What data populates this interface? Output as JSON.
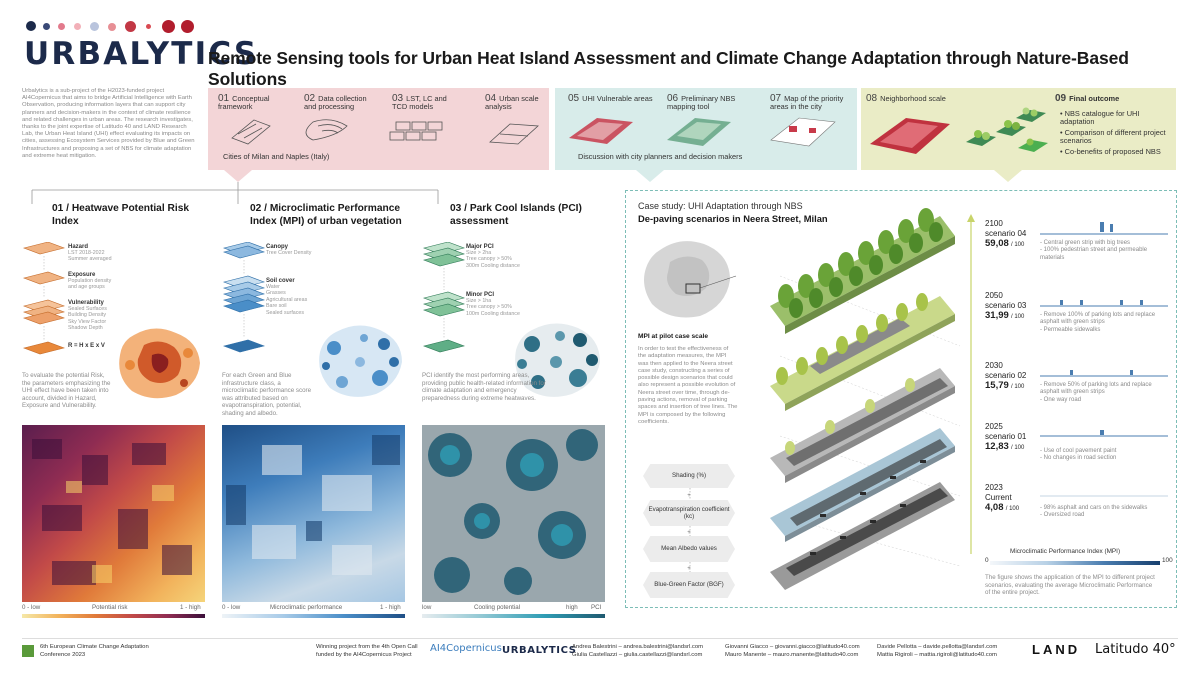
{
  "brand": {
    "logo_text": "URBALYTICS",
    "dot_colors": [
      "#1c2a4a",
      "#3a4a77",
      "#e27a8c",
      "#f2b0b8",
      "#b9c4dd",
      "#e78f95",
      "#c23845",
      "#d94a52",
      "#b11d2d"
    ]
  },
  "header": {
    "title": "Remote Sensing tools for Urban Heat Island Assessment and Climate Change Adaptation through Nature-Based Solutions"
  },
  "intro": {
    "text": "Urbalytics is a sub-project of the H2023-funded project AI4Copernicus that aims to bridge Artificial Intelligence with Earth Observation, producing information layers that can support city planners and decision-makers in the context of climate resilience and related challenges in urban areas. The research investigates, thanks to the joint expertise of Latitudo 40 and LAND Research Lab, the Urban Heat Island (UHI) effect evaluating its impacts on cities, assessing Ecosystem Services provided by Blue and Green Infrastructures and proposing a set of NBS for climate adaptation and extreme heat mitigation."
  },
  "workflow": {
    "steps": [
      {
        "num": "01",
        "label": "Conceptual framework"
      },
      {
        "num": "02",
        "label": "Data collection and processing"
      },
      {
        "num": "03",
        "label": "LST, LC and TCD models"
      },
      {
        "num": "04",
        "label": "Urban scale analysis"
      },
      {
        "num": "05",
        "label": "UHI Vulnerable areas"
      },
      {
        "num": "06",
        "label": "Preliminary NBS mapping tool"
      },
      {
        "num": "07",
        "label": "Map of the priority areas in the city"
      },
      {
        "num": "08",
        "label": "Neighborhood scale"
      },
      {
        "num": "09",
        "label": "Final outcome"
      }
    ],
    "band1_caption": "Cities of Milan and Naples (Italy)",
    "band2_caption": "Discussion with city planners and decision makers",
    "outcomes": [
      "NBS catalogue for UHI adaptation",
      "Comparison of different project scenarios",
      "Co-benefits of proposed NBS"
    ]
  },
  "sections": {
    "hwp": {
      "title": "01 / Heatwave Potential Risk Index",
      "layers": [
        {
          "label": "Hazard",
          "sub": "LST 2018-2022\nSummer averaged"
        },
        {
          "label": "Exposure",
          "sub": "Population density\nand age groups"
        },
        {
          "label": "Vulnerability",
          "sub": "Sealed Surfaces\nBuilding Density\nSky View Factor\nShadow Depth"
        }
      ],
      "formula": "R = H x E x V",
      "text": "To evaluate the potential Risk, the parameters emphasizing the UHI effect have been taken into account, divided in Hazard, Exposure and Vulnerability.",
      "legend_low": "0 - low",
      "legend_mid": "Potential risk",
      "legend_high": "1 - high"
    },
    "mpi": {
      "title": "02 / Microclimatic Performance Index (MPI) of urban vegetation",
      "layers": [
        {
          "label": "Canopy",
          "sub": "Tree Cover Density"
        },
        {
          "label": "Soil cover",
          "sub": "Water\nGrasses\nAgricultural areas\nBare soil\nSealed surfaces"
        }
      ],
      "text": "For each Green and Blue infrastructure class, a microclimatic performance score was attributed based on evapotranspiration, potential, shading and albedo.",
      "legend_low": "0 - low",
      "legend_mid": "Microclimatic performance",
      "legend_high": "1 - high"
    },
    "pci": {
      "title": "03 / Park Cool Islands (PCI) assessment",
      "layers": [
        {
          "label": "Major PCI",
          "sub": "Size > 2ha\nTree canopy > 50%\n300m Cooling distance"
        },
        {
          "label": "Minor PCI",
          "sub": "Size > 1ha\nTree canopy > 50%\n100m Cooling distance"
        }
      ],
      "text": "PCI identify the most performing areas, providing public health-related information for climate adaptation and emergency preparedness during extreme heatwaves.",
      "legend_low": "low",
      "legend_mid": "Cooling potential",
      "legend_high": "high",
      "legend_end": "PCI"
    }
  },
  "case_study": {
    "kicker": "Case study: UHI Adaptation through NBS",
    "title": "De-paving scenarios in Neera Street, Milan",
    "pilot_title": "MPI at pilot case scale",
    "pilot_text": "In order to test the effectiveness of the adaptation measures, the MPI was then applied to the Neera street case study, constructing a series of possible design scenarios that could also represent a possible evolution of Neera street over time, through de-paving actions, removal of parking spaces and insertion of tree lines. The MPI is composed by the following coefficients.",
    "coefficients": [
      "Shading (%)",
      "Evapotranspiration coefficient (kc)",
      "Mean Albedo values",
      "Blue-Green Factor (BGF)"
    ],
    "scenarios": [
      {
        "year": "2100",
        "name": "scenario 04",
        "score": "59,08",
        "den": "/ 100",
        "bullets": [
          "Central green strip with big trees",
          "100% pedestrian street and permeable materials"
        ]
      },
      {
        "year": "2050",
        "name": "scenario 03",
        "score": "31,99",
        "den": "/ 100",
        "bullets": [
          "Remove 100% of parking lots and replace asphalt with green strips",
          "Permeable sidewalks"
        ]
      },
      {
        "year": "2030",
        "name": "scenario 02",
        "score": "15,79",
        "den": "/ 100",
        "bullets": [
          "Remove 50% of parking lots and replace asphalt with green strips",
          "One way road"
        ]
      },
      {
        "year": "2025",
        "name": "scenario 01",
        "score": "12,83",
        "den": "/ 100",
        "bullets": [
          "Use of cool pavement paint",
          "No changes in road section"
        ]
      },
      {
        "year": "2023",
        "name": "Current",
        "score": "4,08",
        "den": "/ 100",
        "bullets": [
          "98% asphalt and cars on the sidewalks",
          "Oversized road"
        ]
      }
    ],
    "mpi_legend_title": "Microclimatic Performance Index (MPI)",
    "mpi_legend_min": "0",
    "mpi_legend_max": "100",
    "figure_caption": "The figure shows the application of the MPI to different project scenarios, evaluating the average Microclimatic Performance of the entire project."
  },
  "footer": {
    "conference": "6th European Climate Change Adaptation Conference 2023",
    "funding": "Winning project from the 4th Open Call funded by the AI4Copernicus Project",
    "ai4_logo": "AI4Copernicus",
    "urbalytics_logo": "URBALYTICS",
    "contacts": [
      "Andrea Balestrini – andrea.balestrini@landsrl.com",
      "Giulia Castellazzi – giulia.castellazzi@landsrl.com",
      "Giovanni Giacco – giovanni.giacco@latitudo40.com",
      "Mauro Manente – mauro.manente@latitudo40.com",
      "Davide Pellotta – davide.pellotta@landsrl.com",
      "Mattia Rigiroli – mattia.rigiroli@latitudo40.com"
    ],
    "land_logo": "LAND",
    "latitudo_logo": "Latitudo 40°"
  },
  "colors": {
    "pink_band": "#f3d5d7",
    "teal_band": "#d8ecea",
    "olive_band": "#eaecc6",
    "risk_orange": "#e8883a",
    "mpi_blue": "#4a8ec8",
    "pci_green": "#5fae86",
    "case_frame": "#7cbdb6"
  }
}
